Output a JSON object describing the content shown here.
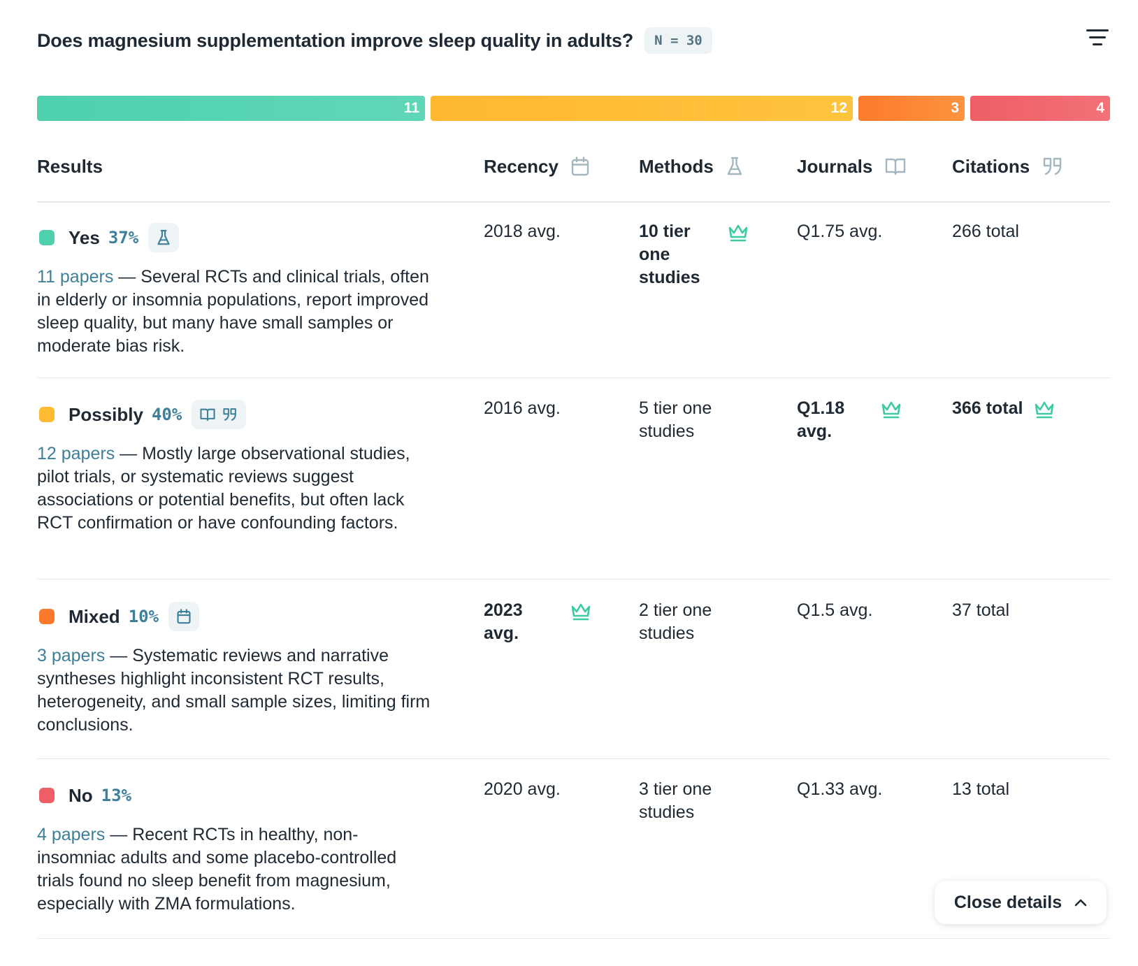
{
  "header": {
    "question": "Does magnesium supplementation improve sleep quality in adults?",
    "n_badge": "N = 30",
    "filter_icon": "filter-lines-icon"
  },
  "distribution": [
    {
      "label": "Yes",
      "count": "11",
      "color": "#52d2af"
    },
    {
      "label": "Possibly",
      "count": "12",
      "color": "#ffbb35"
    },
    {
      "label": "Mixed",
      "count": "3",
      "color": "#fc8233"
    },
    {
      "label": "No",
      "count": "4",
      "color": "#ef666d"
    }
  ],
  "columns": {
    "results": "Results",
    "recency": "Recency",
    "methods": "Methods",
    "journals": "Journals",
    "citations": "Citations"
  },
  "rows": [
    {
      "label": "Yes",
      "percent": "37%",
      "color": "#4fd1ad",
      "papers": "11 papers",
      "description": " — Several RCTs and clinical trials, often in elderly or insomnia populations, report improved sleep quality, but many have small samples or moderate bias risk.",
      "recency": "2018 avg.",
      "methods": "10 tier one studies",
      "journals": "Q1.75 avg.",
      "citations": "266 total"
    },
    {
      "label": "Possibly",
      "percent": "40%",
      "color": "#ffba34",
      "papers": "12 papers",
      "description": " — Mostly large observational studies, pilot trials, or systematic reviews suggest associations or potential benefits, but often lack RCT confirmation or have confounding factors.",
      "recency": "2016 avg.",
      "methods": "5 tier one studies",
      "journals": "Q1.18 avg.",
      "citations": "366 total"
    },
    {
      "label": "Mixed",
      "percent": "10%",
      "color": "#fb7a2c",
      "papers": "3 papers",
      "description": " — Systematic reviews and narrative syntheses highlight inconsistent RCT results, heterogeneity, and small sample sizes, limiting firm conclusions.",
      "recency": "2023 avg.",
      "methods": "2 tier one studies",
      "journals": "Q1.5 avg.",
      "citations": "37 total"
    },
    {
      "label": "No",
      "percent": "13%",
      "color": "#ee5e66",
      "papers": "4 papers",
      "description": " — Recent RCTs in healthy, non-insomniac adults and some placebo-controlled trials found no sleep benefit from magnesium, especially with ZMA formulations.",
      "recency": "2020 avg.",
      "methods": "3 tier one studies",
      "journals": "Q1.33 avg.",
      "citations": "13 total"
    }
  ],
  "close_button": {
    "label": "Close details",
    "icon": "chevron-up-icon"
  }
}
